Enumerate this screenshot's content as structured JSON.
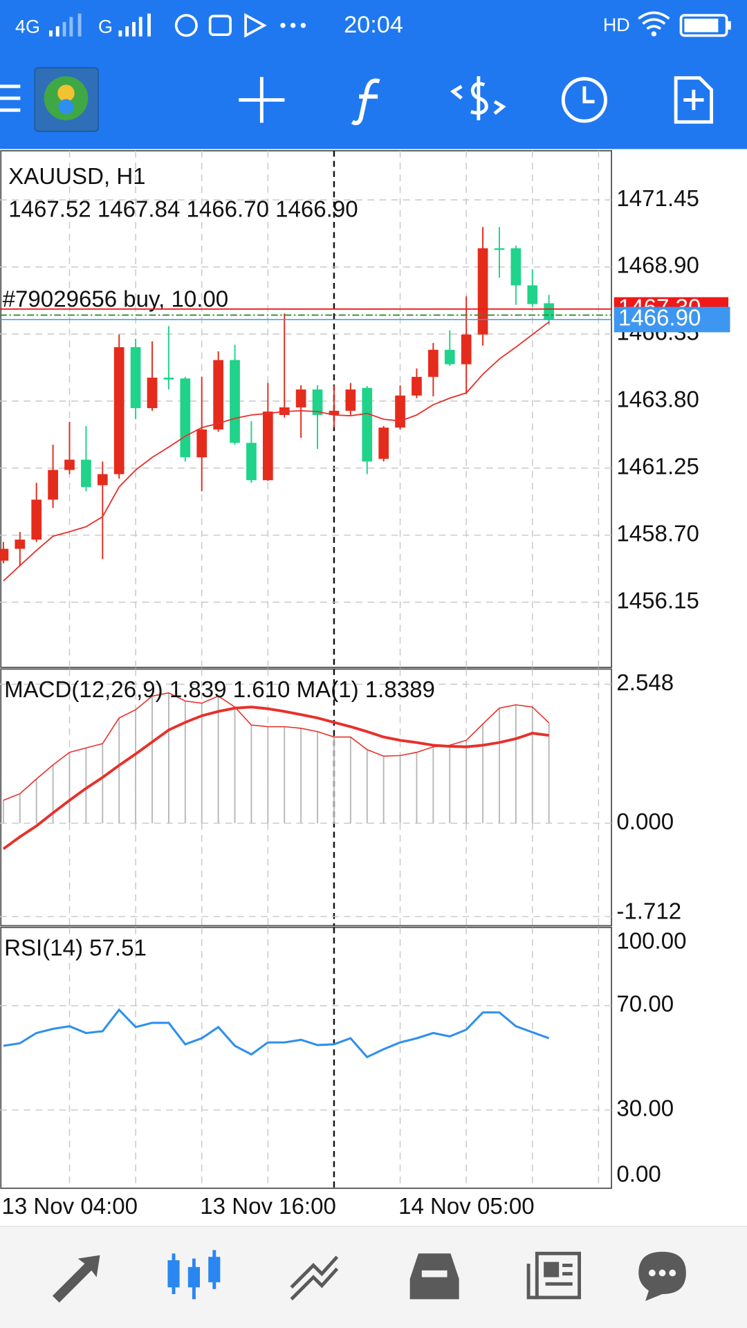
{
  "status_bar": {
    "network": "4G",
    "network2": "G",
    "time": "20:04",
    "hd": "HD"
  },
  "chart_data": [
    {
      "type": "candlestick",
      "title": "XAUUSD, H1",
      "subtitle": "1467.52 1467.84 1466.70 1466.90",
      "categories": [
        "13 Nov 04:00",
        null,
        null,
        null,
        null,
        null,
        null,
        null,
        null,
        null,
        null,
        null,
        "13 Nov 16:00",
        null,
        null,
        null,
        null,
        null,
        null,
        null,
        null,
        null,
        null,
        null,
        "14 Nov 05:00",
        null,
        null,
        null,
        null,
        null,
        null,
        null,
        null,
        null
      ],
      "open": [
        1457.73,
        1458.18,
        1458.53,
        1460.05,
        1461.18,
        1461.57,
        1460.6,
        1461.02,
        1465.85,
        1463.53,
        1464.69,
        1464.66,
        1461.66,
        1462.72,
        1465.36,
        1462.21,
        1460.79,
        1463.27,
        1463.56,
        1464.24,
        1463.27,
        1463.43,
        1464.3,
        1461.6,
        1462.79,
        1464.01,
        1464.72,
        1465.75,
        1465.2,
        1466.33,
        1469.61,
        1469.61,
        1468.2,
        1467.52
      ],
      "high": [
        1458.44,
        1458.82,
        1460.69,
        1462.14,
        1463.01,
        1462.85,
        1461.5,
        1466.33,
        1466.17,
        1466.07,
        1466.65,
        1464.72,
        1464.72,
        1465.69,
        1465.94,
        1463.04,
        1464.49,
        1467.13,
        1464.4,
        1464.4,
        1464.4,
        1464.49,
        1464.37,
        1462.85,
        1464.4,
        1465.04,
        1466.01,
        1466.49,
        1467.78,
        1470.42,
        1470.42,
        1469.71,
        1468.81,
        1467.84
      ],
      "low": [
        1457.63,
        1457.54,
        1458.44,
        1459.73,
        1461.02,
        1460.37,
        1457.79,
        1460.85,
        1463.11,
        1463.43,
        1464.24,
        1461.5,
        1460.37,
        1462.63,
        1462.14,
        1460.69,
        1460.76,
        1463.17,
        1462.4,
        1461.98,
        1462.79,
        1463.27,
        1461.02,
        1461.5,
        1462.72,
        1463.91,
        1463.98,
        1465.14,
        1464.07,
        1465.91,
        1468.49,
        1467.46,
        1467.39,
        1466.7
      ],
      "close": [
        1458.18,
        1458.53,
        1460.05,
        1461.18,
        1461.57,
        1460.53,
        1461.02,
        1465.85,
        1463.53,
        1464.69,
        1464.62,
        1461.66,
        1462.72,
        1465.36,
        1462.21,
        1460.79,
        1463.4,
        1463.56,
        1464.24,
        1463.27,
        1463.43,
        1464.24,
        1461.5,
        1462.79,
        1464.01,
        1464.72,
        1465.75,
        1465.2,
        1466.33,
        1469.61,
        1469.55,
        1468.2,
        1467.49,
        1466.9
      ],
      "up_color": "#e52b1c",
      "down_color": "#1fd38a",
      "ma": {
        "color": "#e8302a",
        "values": [
          1456.96,
          1457.54,
          1458.12,
          1458.66,
          1458.83,
          1459.02,
          1459.4,
          1460.53,
          1461.18,
          1461.66,
          1462.05,
          1462.46,
          1462.79,
          1462.95,
          1463.14,
          1463.27,
          1463.33,
          1463.4,
          1463.43,
          1463.4,
          1463.27,
          1463.24,
          1463.33,
          1463.11,
          1463.04,
          1463.27,
          1463.66,
          1463.91,
          1464.11,
          1464.82,
          1465.4,
          1465.85,
          1466.33,
          1466.81
        ]
      },
      "order": {
        "label": "#79029656 buy, 10.00",
        "price": 1467.07,
        "color": "#2e8b2e"
      },
      "ask": {
        "value": 1467.3,
        "label": "1467.30",
        "color": "#f01818"
      },
      "bid": {
        "value": 1466.9,
        "label": "1466.90",
        "color": "#3d97f0"
      },
      "ylim": [
        1453.67,
        1473.32
      ],
      "yticks": [
        1471.45,
        {
          "value": 1468.9,
          "label": "1468.90"
        },
        1466.35,
        {
          "value": 1463.8,
          "label": "1463.80"
        },
        1461.25,
        {
          "value": 1458.7,
          "label": "1458.70"
        },
        1456.15
      ],
      "grid": true
    },
    {
      "type": "macd",
      "title": "MACD(12,26,9) 1.839 1.610 MA(1) 1.8389",
      "series": [
        {
          "color": "#b5b5b5",
          "values": [
            0.42,
            0.54,
            0.81,
            1.07,
            1.3,
            1.38,
            1.46,
            1.93,
            2.08,
            2.33,
            2.39,
            2.24,
            2.2,
            2.33,
            2.13,
            1.8,
            1.77,
            1.77,
            1.74,
            1.68,
            1.58,
            1.58,
            1.35,
            1.23,
            1.24,
            1.3,
            1.4,
            1.43,
            1.52,
            1.82,
            2.11,
            2.17,
            2.13,
            1.839
          ]
        },
        {
          "color": "#e8302a",
          "values": [
            -0.47,
            -0.25,
            -0.05,
            0.19,
            0.42,
            0.64,
            0.84,
            1.06,
            1.27,
            1.49,
            1.71,
            1.85,
            1.97,
            2.05,
            2.11,
            2.13,
            2.1,
            2.05,
            1.99,
            1.93,
            1.85,
            1.77,
            1.68,
            1.58,
            1.52,
            1.48,
            1.43,
            1.41,
            1.4,
            1.43,
            1.48,
            1.55,
            1.65,
            1.61
          ]
        }
      ],
      "ylim": [
        -1.879,
        2.826
      ],
      "yticks": [
        2.548,
        {
          "value": 0,
          "label": "0.000"
        },
        -1.712
      ],
      "grid": true
    },
    {
      "type": "line",
      "title": "RSI(14) 57.51",
      "color": "#2f8fee",
      "values": [
        54.6,
        55.6,
        59.5,
        61.1,
        62.1,
        59.5,
        60.2,
        68.4,
        61.8,
        63.4,
        63.4,
        55.2,
        57.5,
        61.8,
        54.6,
        51.3,
        55.9,
        55.9,
        56.9,
        54.9,
        55.2,
        57.5,
        50.3,
        53.3,
        55.9,
        57.5,
        59.5,
        58.2,
        60.8,
        67.4,
        67.4,
        62.1,
        59.8,
        57.51
      ],
      "ylim": [
        0,
        100
      ],
      "yticks": [
        {
          "value": 100,
          "label": "100.00"
        },
        {
          "value": 70,
          "label": "70.00"
        },
        {
          "value": 30,
          "label": "30.00"
        },
        {
          "value": 0,
          "label": "0.00"
        }
      ],
      "grid": true
    }
  ]
}
